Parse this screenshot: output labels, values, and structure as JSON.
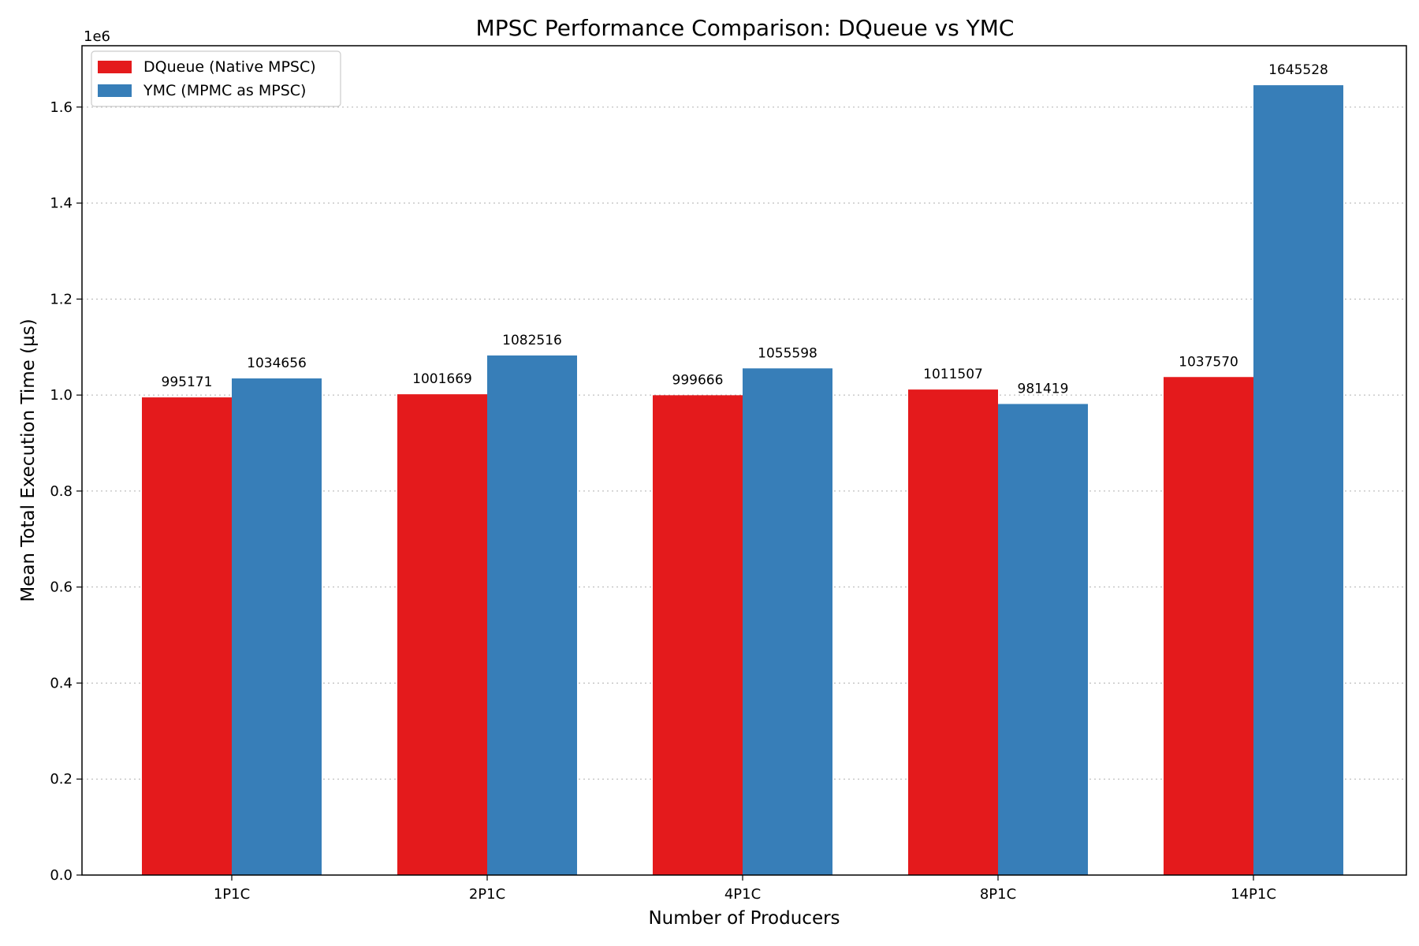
{
  "chart_data": {
    "type": "bar",
    "title": "MPSC Performance Comparison: DQueue vs YMC",
    "xlabel": "Number of Producers",
    "ylabel": "Mean Total Execution Time (µs)",
    "y_offset_label": "1e6",
    "categories": [
      "1P1C",
      "2P1C",
      "4P1C",
      "8P1C",
      "14P1C"
    ],
    "series": [
      {
        "name": "DQueue (Native MPSC)",
        "color": "#e41a1c",
        "values": [
          995171,
          1001669,
          999666,
          1011507,
          1037570
        ],
        "labels": [
          "995171",
          "1001669",
          "999666",
          "1011507",
          "1037570"
        ]
      },
      {
        "name": "YMC (MPMC as MPSC)",
        "color": "#377eb8",
        "values": [
          1034656,
          1082516,
          1055598,
          981419,
          1645528
        ],
        "labels": [
          "1034656",
          "1082516",
          "1055598",
          "981419",
          "1645528"
        ]
      }
    ],
    "ylim": [
      0,
      1727804
    ],
    "yticks": [
      0,
      200000,
      400000,
      600000,
      800000,
      1000000,
      1200000,
      1400000,
      1600000
    ],
    "ytick_labels": [
      "0.0",
      "0.2",
      "0.4",
      "0.6",
      "0.8",
      "1.0",
      "1.2",
      "1.4",
      "1.6"
    ],
    "grid": "y-dotted",
    "legend_position": "top-left"
  }
}
